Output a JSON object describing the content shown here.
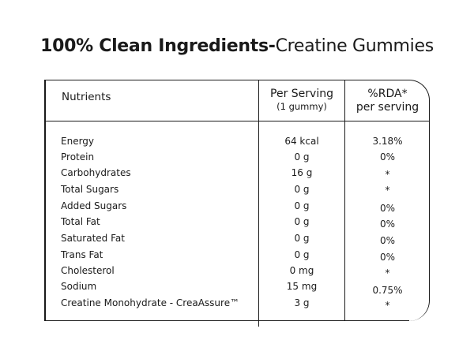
{
  "title": {
    "bold_part": "100% Clean Ingredients-",
    "regular_part": "Creatine Gummies"
  },
  "table": {
    "headers": {
      "nutrients": "Nutrients",
      "per_serving": "Per Serving",
      "per_serving_sub": "(1 gummy)",
      "rda_line1": "%RDA*",
      "rda_line2": "per serving"
    },
    "rows": [
      {
        "name": "Energy",
        "per_serving": "64 kcal",
        "rda": "3.18%"
      },
      {
        "name": "Protein",
        "per_serving": "0 g",
        "rda": "0%"
      },
      {
        "name": "Carbohydrates",
        "per_serving": "16 g",
        "rda": "*"
      },
      {
        "name": "Total Sugars",
        "per_serving": "0 g",
        "rda": "*"
      },
      {
        "name": "Added Sugars",
        "per_serving": "0 g",
        "rda": "0%"
      },
      {
        "name": "Total Fat",
        "per_serving": "0 g",
        "rda": "0%"
      },
      {
        "name": "Saturated Fat",
        "per_serving": "0 g",
        "rda": "0%"
      },
      {
        "name": "Trans Fat",
        "per_serving": "0 g",
        "rda": "0%"
      },
      {
        "name": "Cholesterol",
        "per_serving": "0 mg",
        "rda": "*"
      },
      {
        "name": "Sodium",
        "per_serving": "15 mg",
        "rda": "0.75%"
      },
      {
        "name": "Creatine Monohydrate - CreaAssure™",
        "per_serving": "3 g",
        "rda": "*"
      }
    ]
  }
}
